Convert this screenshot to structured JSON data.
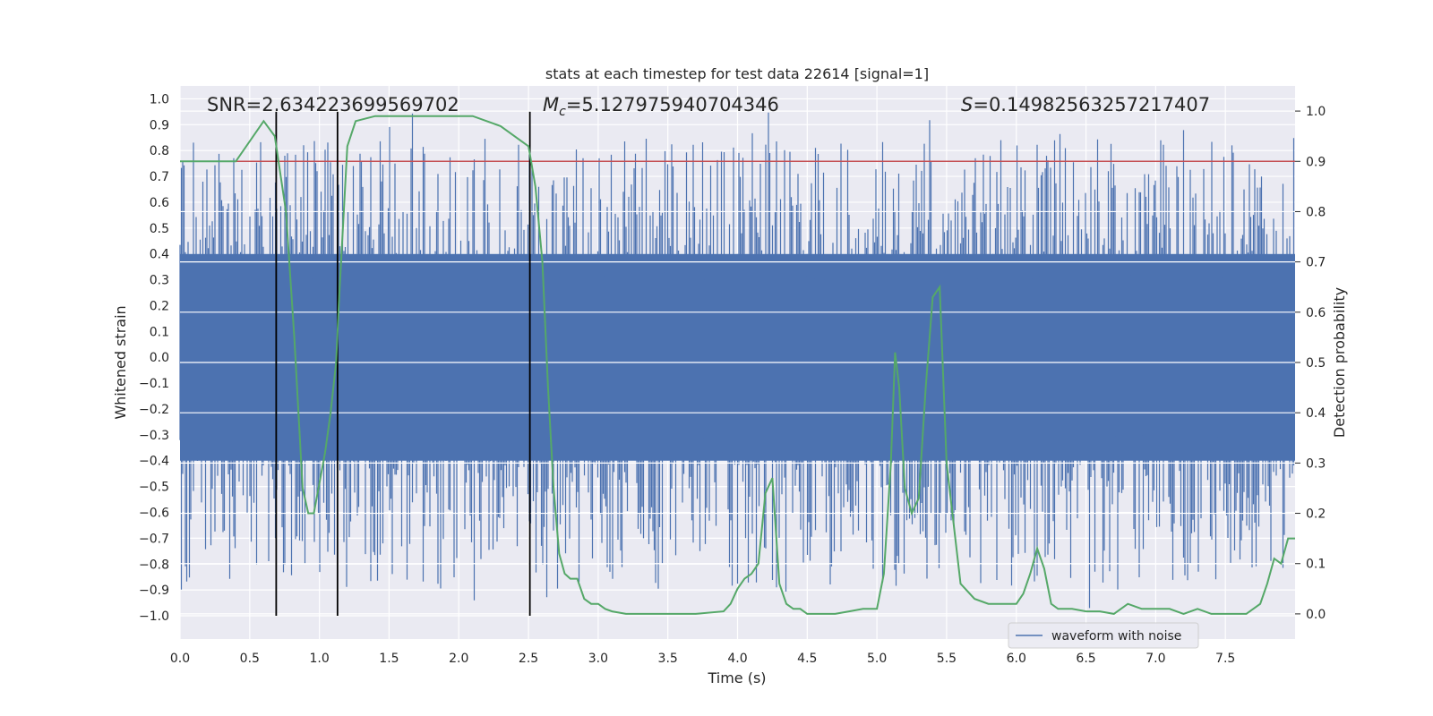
{
  "chart_data": {
    "type": "line",
    "title": "stats at each timestep for test data 22614 [signal=1]",
    "xlabel": "Time (s)",
    "ylabel": "Whitened strain",
    "y2label": "Detection probability",
    "xlim": [
      0.0,
      8.0
    ],
    "ylim": [
      -1.09,
      1.05
    ],
    "y2lim": [
      -0.05,
      1.05
    ],
    "xticks": [
      "0.0",
      "0.5",
      "1.0",
      "1.5",
      "2.0",
      "2.5",
      "3.0",
      "3.5",
      "4.0",
      "4.5",
      "5.0",
      "5.5",
      "6.0",
      "6.5",
      "7.0",
      "7.5"
    ],
    "xtick_values": [
      0.0,
      0.5,
      1.0,
      1.5,
      2.0,
      2.5,
      3.0,
      3.5,
      4.0,
      4.5,
      5.0,
      5.5,
      6.0,
      6.5,
      7.0,
      7.5
    ],
    "yticks": [
      "1.0",
      "0.9",
      "0.8",
      "0.7",
      "0.6",
      "0.5",
      "0.4",
      "0.3",
      "0.2",
      "0.1",
      "0.0",
      "−0.1",
      "−0.2",
      "−0.3",
      "−0.4",
      "−0.5",
      "−0.6",
      "−0.7",
      "−0.8",
      "−0.9",
      "−1.0"
    ],
    "ytick_values": [
      1.0,
      0.9,
      0.8,
      0.7,
      0.6,
      0.5,
      0.4,
      0.3,
      0.2,
      0.1,
      0.0,
      -0.1,
      -0.2,
      -0.3,
      -0.4,
      -0.5,
      -0.6,
      -0.7,
      -0.8,
      -0.9,
      -1.0
    ],
    "y2ticks": [
      "1.0",
      "0.9",
      "0.8",
      "0.7",
      "0.6",
      "0.5",
      "0.4",
      "0.3",
      "0.2",
      "0.1",
      "0.0"
    ],
    "y2tick_values": [
      1.0,
      0.9,
      0.8,
      0.7,
      0.6,
      0.5,
      0.4,
      0.3,
      0.2,
      0.1,
      0.0
    ],
    "series": [
      {
        "name": "waveform with noise",
        "axis": "left",
        "color": "#4c72b0",
        "kind": "noise",
        "core_amplitude": 0.4,
        "peak_max": 0.95,
        "peak_min": -1.0
      },
      {
        "name": "detection probability",
        "axis": "right",
        "color": "#55a868",
        "x": [
          0.0,
          0.06,
          0.2,
          0.4,
          0.6,
          0.68,
          0.76,
          0.82,
          0.88,
          0.92,
          0.96,
          1.04,
          1.08,
          1.12,
          1.14,
          1.2,
          1.26,
          1.4,
          1.6,
          1.8,
          2.0,
          2.1,
          2.2,
          2.3,
          2.4,
          2.5,
          2.55,
          2.6,
          2.64,
          2.68,
          2.72,
          2.76,
          2.8,
          2.85,
          2.9,
          2.95,
          3.0,
          3.05,
          3.1,
          3.2,
          3.3,
          3.5,
          3.7,
          3.9,
          3.95,
          4.0,
          4.05,
          4.1,
          4.15,
          4.2,
          4.25,
          4.3,
          4.35,
          4.4,
          4.45,
          4.5,
          4.6,
          4.7,
          4.8,
          4.9,
          5.0,
          5.05,
          5.1,
          5.13,
          5.16,
          5.2,
          5.25,
          5.3,
          5.35,
          5.4,
          5.45,
          5.5,
          5.6,
          5.7,
          5.8,
          5.9,
          6.0,
          6.05,
          6.1,
          6.15,
          6.2,
          6.25,
          6.3,
          6.4,
          6.5,
          6.6,
          6.7,
          6.75,
          6.8,
          6.9,
          7.0,
          7.1,
          7.2,
          7.3,
          7.4,
          7.5,
          7.6,
          7.65,
          7.7,
          7.75,
          7.8,
          7.85,
          7.9,
          7.95,
          8.0
        ],
        "y": [
          0.9,
          0.9,
          0.9,
          0.9,
          0.98,
          0.95,
          0.8,
          0.55,
          0.25,
          0.2,
          0.2,
          0.32,
          0.4,
          0.5,
          0.62,
          0.93,
          0.98,
          0.99,
          0.99,
          0.99,
          0.99,
          0.99,
          0.98,
          0.97,
          0.95,
          0.93,
          0.85,
          0.7,
          0.45,
          0.25,
          0.12,
          0.08,
          0.07,
          0.07,
          0.03,
          0.02,
          0.02,
          0.01,
          0.005,
          0.0,
          0.0,
          0.0,
          0.0,
          0.005,
          0.02,
          0.05,
          0.07,
          0.08,
          0.1,
          0.24,
          0.27,
          0.06,
          0.02,
          0.01,
          0.01,
          0.0,
          0.0,
          0.0,
          0.005,
          0.01,
          0.01,
          0.08,
          0.3,
          0.52,
          0.45,
          0.25,
          0.2,
          0.23,
          0.45,
          0.63,
          0.65,
          0.3,
          0.06,
          0.03,
          0.02,
          0.02,
          0.02,
          0.04,
          0.08,
          0.13,
          0.09,
          0.02,
          0.01,
          0.01,
          0.005,
          0.005,
          0.0,
          0.01,
          0.02,
          0.01,
          0.01,
          0.01,
          0.0,
          0.01,
          0.0,
          0.0,
          0.0,
          0.0,
          0.01,
          0.02,
          0.06,
          0.11,
          0.1,
          0.15,
          0.15
        ]
      }
    ],
    "threshold": {
      "value": 0.9,
      "axis": "right",
      "color": "#c44e52"
    },
    "vertical_lines": [
      0.69,
      1.13,
      2.51
    ],
    "vertical_line_range": [
      -1.0,
      0.95
    ],
    "annotations": [
      {
        "text": "SNR=2.634223699569702",
        "x": 0.2,
        "y": 0.96
      },
      {
        "text_italic": "M",
        "text_sub": "c",
        "text": "=5.127975940704346",
        "x": 2.6,
        "y": 0.96
      },
      {
        "text_italic": "S",
        "text": "=0.14982563257217407",
        "x": 5.6,
        "y": 0.96
      }
    ],
    "legend": {
      "position": "lower-right",
      "entries": [
        "waveform with noise"
      ]
    },
    "grid": true,
    "background": "#eaeaf2"
  }
}
